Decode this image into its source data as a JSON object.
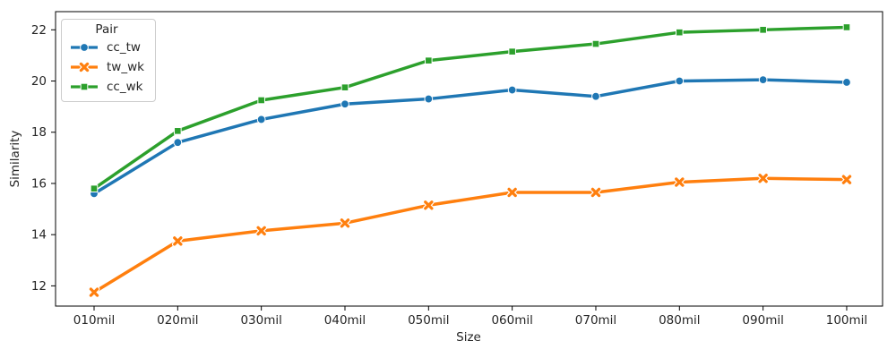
{
  "figure": {
    "background": "#ffffff",
    "text_color": "#262626",
    "spine_color": "#000000"
  },
  "chart_data": {
    "type": "line",
    "title": "",
    "xlabel": "Size",
    "ylabel": "Similarity",
    "categories": [
      "010mil",
      "020mil",
      "030mil",
      "040mil",
      "050mil",
      "060mil",
      "070mil",
      "080mil",
      "090mil",
      "100mil"
    ],
    "y_ticks": [
      12,
      14,
      16,
      18,
      20,
      22
    ],
    "ylim": [
      11.21,
      22.71
    ],
    "grid": false,
    "legend": {
      "title": "Pair",
      "position": "upper-left"
    },
    "series": [
      {
        "name": "cc_tw",
        "color": "#1f77b4",
        "marker": "circle",
        "values": [
          15.6,
          17.6,
          18.5,
          19.1,
          19.3,
          19.65,
          19.4,
          20.0,
          20.05,
          19.95
        ]
      },
      {
        "name": "tw_wk",
        "color": "#ff7f0e",
        "marker": "x",
        "values": [
          11.75,
          13.75,
          14.15,
          14.45,
          15.15,
          15.65,
          15.65,
          16.05,
          16.2,
          16.15
        ]
      },
      {
        "name": "cc_wk",
        "color": "#2ca02c",
        "marker": "square",
        "values": [
          15.8,
          18.05,
          19.25,
          19.75,
          20.8,
          21.15,
          21.45,
          21.9,
          22.0,
          22.1
        ]
      }
    ]
  }
}
